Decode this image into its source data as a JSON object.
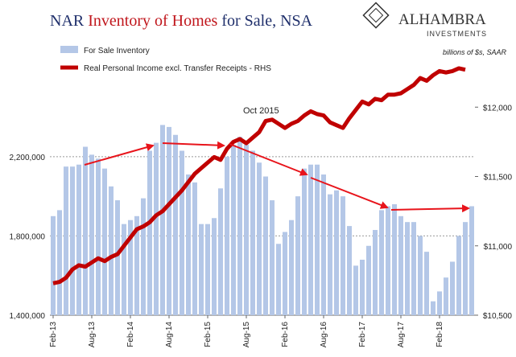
{
  "chart_data": {
    "type": "bar_line",
    "title": [
      {
        "text": "NAR ",
        "color": "#1f2f6b"
      },
      {
        "text": "Inventory of Homes",
        "color": "#c0161c"
      },
      {
        "text": " for Sale, NSA",
        "color": "#1f2f6b"
      }
    ],
    "logo": {
      "name": "ALHAMBRA",
      "subname": "INVESTMENTS"
    },
    "y2_label": "billions of $s, SAAR",
    "annotation": "Oct 2015",
    "categories": [
      "Feb-13",
      null,
      null,
      null,
      null,
      null,
      "Aug-13",
      null,
      null,
      null,
      null,
      null,
      "Feb-14",
      null,
      null,
      null,
      null,
      null,
      "Aug-14",
      null,
      null,
      null,
      null,
      null,
      "Feb-15",
      null,
      null,
      null,
      null,
      null,
      "Aug-15",
      null,
      null,
      null,
      null,
      null,
      "Feb-16",
      null,
      null,
      null,
      null,
      null,
      "Aug-16",
      null,
      null,
      null,
      null,
      null,
      "Feb-17",
      null,
      null,
      null,
      null,
      null,
      "Aug-17",
      null,
      null,
      null,
      null,
      null,
      "Feb-18",
      null,
      null,
      null,
      null,
      null
    ],
    "series": [
      {
        "name": "For Sale Inventory",
        "color": "#b4c7e7",
        "kind": "bar",
        "values": [
          1900000,
          1930000,
          2150000,
          2150000,
          2160000,
          2250000,
          2210000,
          2190000,
          2140000,
          2050000,
          1980000,
          1860000,
          1880000,
          1900000,
          1990000,
          2230000,
          2270000,
          2360000,
          2350000,
          2310000,
          2230000,
          2110000,
          2070000,
          1860000,
          1860000,
          1890000,
          2040000,
          2200000,
          2260000,
          2300000,
          2260000,
          2230000,
          2170000,
          2100000,
          1980000,
          1760000,
          1820000,
          1880000,
          2000000,
          2140000,
          2160000,
          2160000,
          2110000,
          2010000,
          2030000,
          2000000,
          1850000,
          1650000,
          1680000,
          1750000,
          1830000,
          1930000,
          1950000,
          1960000,
          1900000,
          1870000,
          1870000,
          1800000,
          1720000,
          1470000,
          1520000,
          1590000,
          1670000,
          1800000,
          1870000,
          1950000
        ]
      },
      {
        "name": "Real Personal Income excl. Transfer Receipts - RHS",
        "color": "#c00000",
        "kind": "line",
        "axis": "y2",
        "values": [
          10730,
          10740,
          10770,
          10830,
          10860,
          10850,
          10880,
          10910,
          10890,
          10920,
          10940,
          11000,
          11060,
          11120,
          11140,
          11170,
          11220,
          11250,
          11300,
          11350,
          11400,
          11460,
          11520,
          11560,
          11600,
          11640,
          11620,
          11700,
          11750,
          11770,
          11740,
          11780,
          11820,
          11900,
          11910,
          11880,
          11850,
          11880,
          11900,
          11940,
          11970,
          11950,
          11940,
          11890,
          11870,
          11850,
          11920,
          11980,
          12040,
          12020,
          12060,
          12050,
          12090,
          12090,
          12100,
          12130,
          12160,
          12210,
          12190,
          12230,
          12260,
          12250,
          12260,
          12280,
          12270,
          null
        ]
      }
    ],
    "ylim": [
      1400000,
      2800000
    ],
    "yticks": [
      {
        "value": 1400000,
        "label": "1,400,000"
      },
      {
        "value": 1800000,
        "label": "1,800,000"
      },
      {
        "value": 2200000,
        "label": "2,200,000"
      }
    ],
    "y2lim": [
      10500,
      12500
    ],
    "y2ticks": [
      {
        "value": 10500,
        "label": "$10,500"
      },
      {
        "value": 11000,
        "label": "$11,000"
      },
      {
        "value": 11500,
        "label": "$11,500"
      },
      {
        "value": 12000,
        "label": "$12,000"
      }
    ],
    "grid": true
  }
}
